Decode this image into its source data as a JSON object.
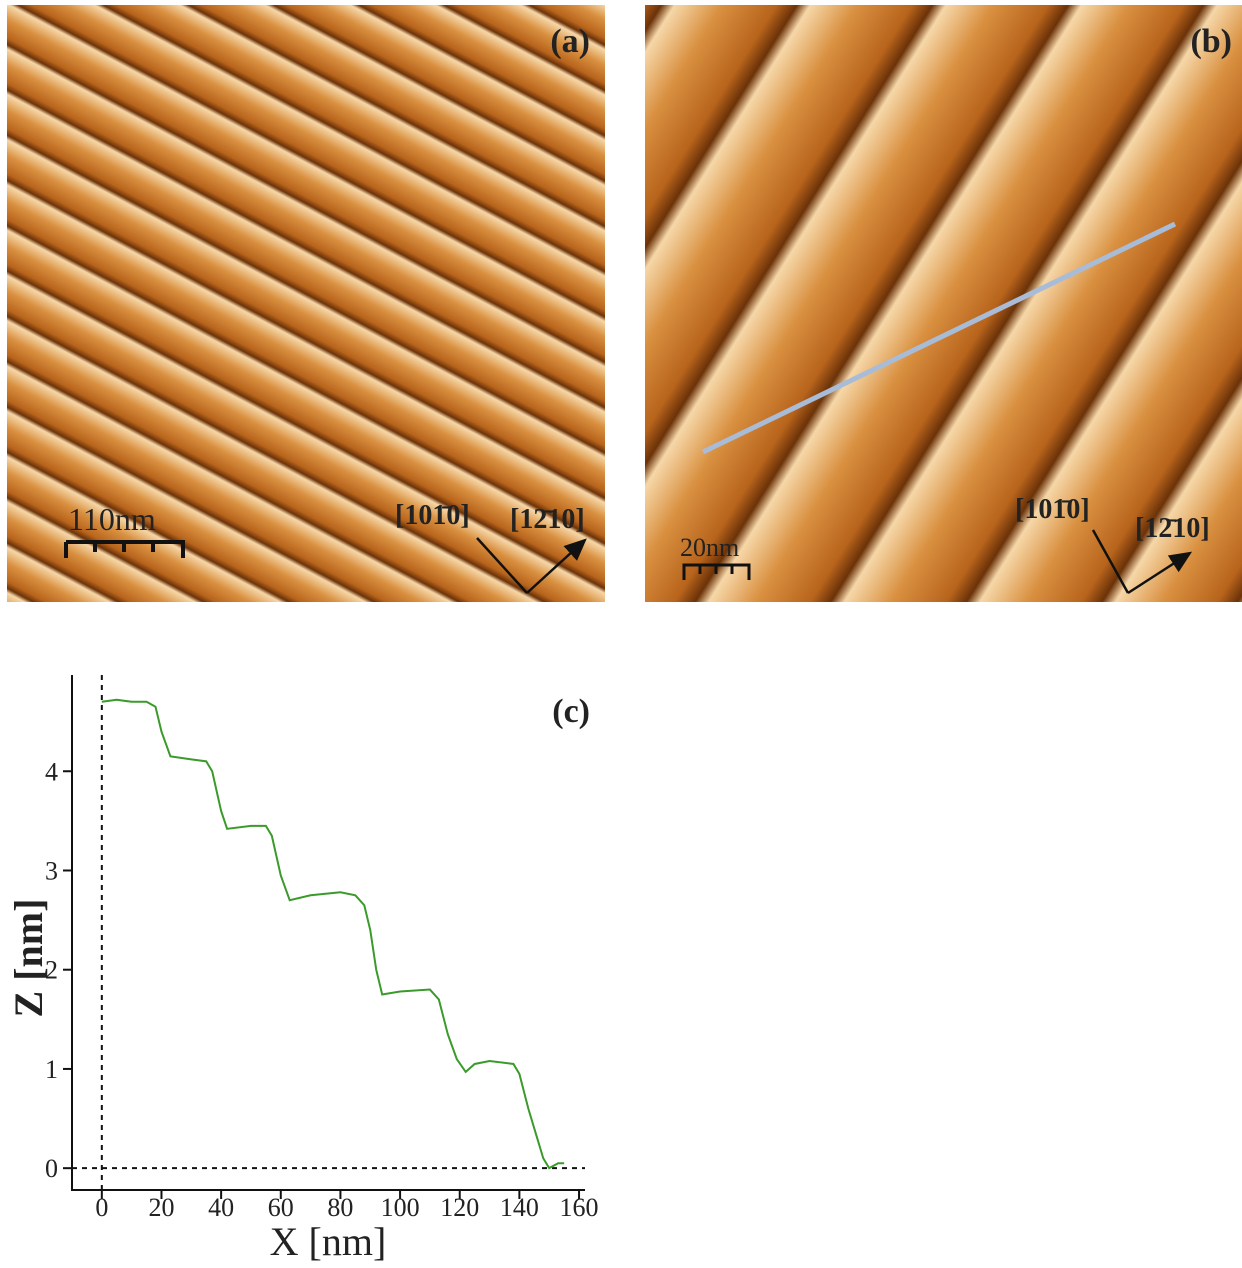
{
  "panels": [
    {
      "label": "(a)",
      "scale_bar": "110nm",
      "directions": [
        "[101̄0]",
        "[12̄10]"
      ]
    },
    {
      "label": "(b)",
      "scale_bar": "20nm",
      "directions": [
        "[101̄0]",
        "[12̄10]"
      ]
    }
  ],
  "chart_data": {
    "type": "line",
    "label": "(c)",
    "x_label": "X [nm]",
    "y_label": "Z [nm]",
    "x": [
      0,
      5,
      10,
      15,
      18,
      20,
      23,
      30,
      35,
      37,
      40,
      42,
      50,
      55,
      57,
      60,
      63,
      70,
      80,
      85,
      88,
      90,
      92,
      94,
      100,
      110,
      113,
      116,
      119,
      122,
      125,
      130,
      138,
      140,
      143,
      146,
      148,
      150,
      153,
      155
    ],
    "values": [
      4.7,
      4.72,
      4.7,
      4.7,
      4.65,
      4.4,
      4.15,
      4.12,
      4.1,
      4.0,
      3.6,
      3.42,
      3.45,
      3.45,
      3.35,
      2.95,
      2.7,
      2.75,
      2.78,
      2.75,
      2.65,
      2.4,
      2.0,
      1.75,
      1.78,
      1.8,
      1.7,
      1.35,
      1.1,
      0.97,
      1.05,
      1.08,
      1.05,
      0.95,
      0.6,
      0.3,
      0.1,
      0.0,
      0.05,
      0.05
    ],
    "color": "#3a9a2a",
    "xlim": [
      -10,
      162
    ],
    "ylim": [
      -0.22,
      4.97
    ],
    "xticks": [
      0,
      20,
      40,
      60,
      80,
      100,
      120,
      140,
      160
    ],
    "yticks": [
      0,
      1,
      2,
      3,
      4
    ]
  }
}
